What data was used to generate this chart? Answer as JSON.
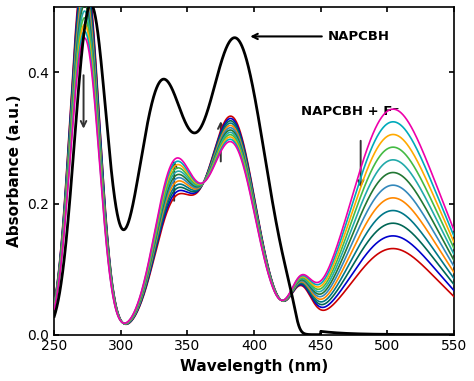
{
  "xlabel": "Wavelength (nm)",
  "ylabel": "Absorbance (a.u.)",
  "xlim": [
    250,
    550
  ],
  "ylim": [
    0.0,
    0.5
  ],
  "yticks": [
    0.0,
    0.2,
    0.4
  ],
  "xticks": [
    250,
    300,
    350,
    400,
    450,
    500,
    550
  ],
  "napcbh_color": "#000000",
  "annotation_napcbh": "NAPCBH",
  "annotation_napcbh_f": "NAPCBH + F⁻",
  "curve_colors": [
    "#cc0000",
    "#0000cc",
    "#006060",
    "#007070",
    "#ff8c00",
    "#4499cc",
    "#228844",
    "#33aaaa",
    "#44aa44",
    "#ffaa00",
    "#00aacc",
    "#ff00aa"
  ]
}
